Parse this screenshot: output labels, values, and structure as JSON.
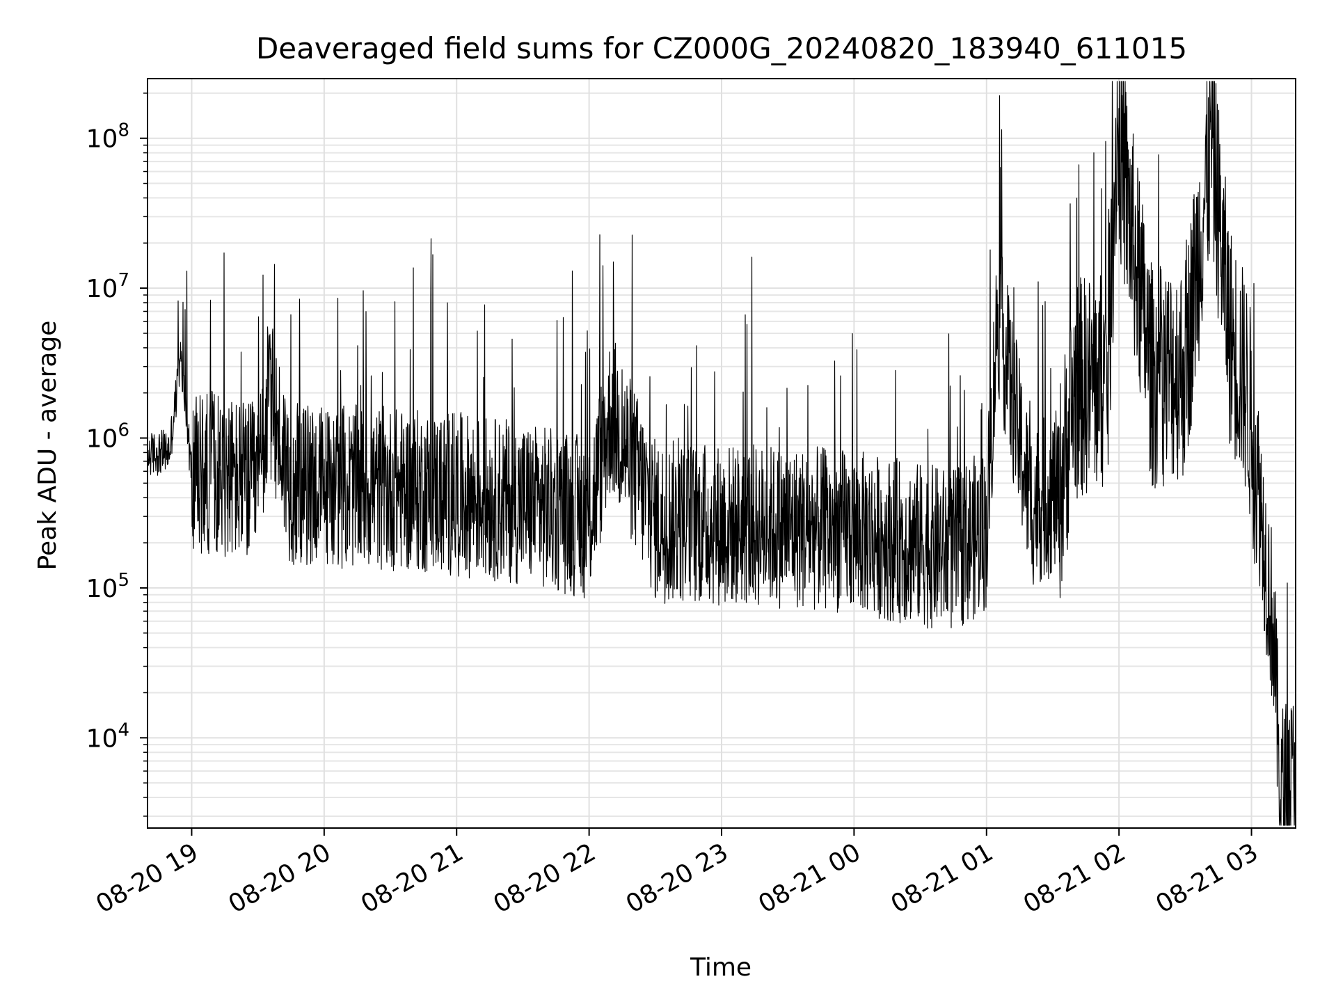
{
  "chart_data": {
    "type": "line",
    "title": "Deaveraged field sums for CZ000G_20240820_183940_611015",
    "xlabel": "Time",
    "ylabel": "Peak ADU - average",
    "yscale": "log",
    "xlim": [
      "2024-08-20 18:40",
      "2024-08-21 03:20"
    ],
    "ylim": [
      2500,
      250000000
    ],
    "x_ticks": [
      {
        "label": "08-20 19",
        "time": "2024-08-20 19:00"
      },
      {
        "label": "08-20 20",
        "time": "2024-08-20 20:00"
      },
      {
        "label": "08-20 21",
        "time": "2024-08-20 21:00"
      },
      {
        "label": "08-20 22",
        "time": "2024-08-20 22:00"
      },
      {
        "label": "08-20 23",
        "time": "2024-08-20 23:00"
      },
      {
        "label": "08-21 00",
        "time": "2024-08-21 00:00"
      },
      {
        "label": "08-21 01",
        "time": "2024-08-21 01:00"
      },
      {
        "label": "08-21 02",
        "time": "2024-08-21 02:00"
      },
      {
        "label": "08-21 03",
        "time": "2024-08-21 03:00"
      }
    ],
    "y_ticks": [
      {
        "base": "10",
        "exp": "4",
        "value": 10000
      },
      {
        "base": "10",
        "exp": "5",
        "value": 100000
      },
      {
        "base": "10",
        "exp": "6",
        "value": 1000000
      },
      {
        "base": "10",
        "exp": "7",
        "value": 10000000
      },
      {
        "base": "10",
        "exp": "8",
        "value": 100000000
      }
    ],
    "grid": true,
    "series": [
      {
        "color": "#000000",
        "points": [
          [
            "2024-08-20 18:40",
            800000
          ],
          [
            "2024-08-20 18:50",
            850000
          ],
          [
            "2024-08-20 18:55",
            3500000
          ],
          [
            "2024-08-20 19:00",
            600000
          ],
          [
            "2024-08-20 19:10",
            700000
          ],
          [
            "2024-08-20 19:20",
            600000
          ],
          [
            "2024-08-20 19:30",
            550000
          ],
          [
            "2024-08-20 19:35",
            2200000
          ],
          [
            "2024-08-20 19:45",
            550000
          ],
          [
            "2024-08-20 20:00",
            550000
          ],
          [
            "2024-08-20 20:30",
            520000
          ],
          [
            "2024-08-20 21:00",
            480000
          ],
          [
            "2024-08-20 21:30",
            420000
          ],
          [
            "2024-08-20 22:00",
            330000
          ],
          [
            "2024-08-20 22:10",
            1700000
          ],
          [
            "2024-08-20 22:30",
            320000
          ],
          [
            "2024-08-20 23:00",
            300000
          ],
          [
            "2024-08-20 23:30",
            290000
          ],
          [
            "2024-08-21 00:00",
            270000
          ],
          [
            "2024-08-21 00:30",
            220000
          ],
          [
            "2024-08-21 00:45",
            200000
          ],
          [
            "2024-08-21 01:00",
            280000
          ],
          [
            "2024-08-21 01:05",
            8000000
          ],
          [
            "2024-08-21 01:20",
            400000
          ],
          [
            "2024-08-21 01:33",
            500000
          ],
          [
            "2024-08-21 01:40",
            2500000
          ],
          [
            "2024-08-21 01:55",
            3000000
          ],
          [
            "2024-08-21 01:59",
            140000000
          ],
          [
            "2024-08-21 02:15",
            3000000
          ],
          [
            "2024-08-21 02:30",
            3500000
          ],
          [
            "2024-08-21 02:42",
            120000000
          ],
          [
            "2024-08-21 02:50",
            6000000
          ],
          [
            "2024-08-21 02:58",
            2500000
          ],
          [
            "2024-08-21 03:03",
            600000
          ],
          [
            "2024-08-21 03:07",
            150000
          ],
          [
            "2024-08-21 03:10",
            60000
          ],
          [
            "2024-08-21 03:13",
            5000
          ],
          [
            "2024-08-21 03:20",
            6000
          ]
        ]
      }
    ]
  }
}
